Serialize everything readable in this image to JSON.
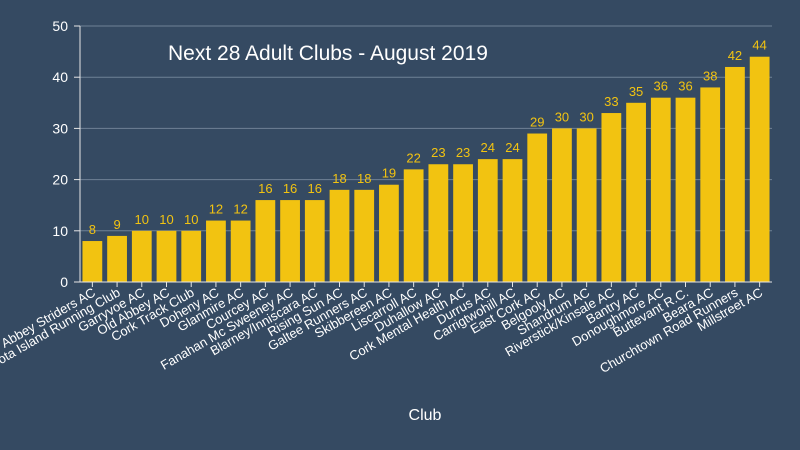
{
  "chart_data": {
    "type": "bar",
    "title": "Next 28 Adult Clubs - August 2019",
    "xlabel": "Club",
    "ylabel": "",
    "ylim": [
      0,
      50
    ],
    "yticks": [
      0,
      10,
      20,
      30,
      40,
      50
    ],
    "grid": true,
    "colors": {
      "background": "#354a62",
      "bar": "#f2c311",
      "text": "#ffffff",
      "grid": "#6f8196"
    },
    "categories": [
      "Abbey Striders AC",
      "Fota Island Running Club",
      "Garryvoe AC",
      "Old Abbey AC",
      "Cork Track Club",
      "Doheny AC",
      "Glanmire AC",
      "Courcey AC",
      "Fanahan Mc Sweeney AC",
      "Blarney/Inniscara AC",
      "Rising Sun AC",
      "Galtee Runners AC",
      "Skibbereen AC",
      "Liscarroll AC",
      "Duhallow AC",
      "Cork Mental Health AC",
      "Durrus AC",
      "Carrigtwohill AC",
      "East Cork AC",
      "Belgooly AC",
      "Shandrum AC",
      "Riverstick/Kinsale AC",
      "Bantry AC",
      "Donoughmore AC",
      "Buttevant R.C.",
      "Beara AC",
      "Churchtown Road Runners",
      "Millstreet AC"
    ],
    "values": [
      8,
      9,
      10,
      10,
      10,
      12,
      12,
      16,
      16,
      16,
      18,
      18,
      19,
      22,
      23,
      23,
      24,
      24,
      29,
      30,
      30,
      33,
      35,
      36,
      36,
      38,
      42,
      44
    ]
  }
}
